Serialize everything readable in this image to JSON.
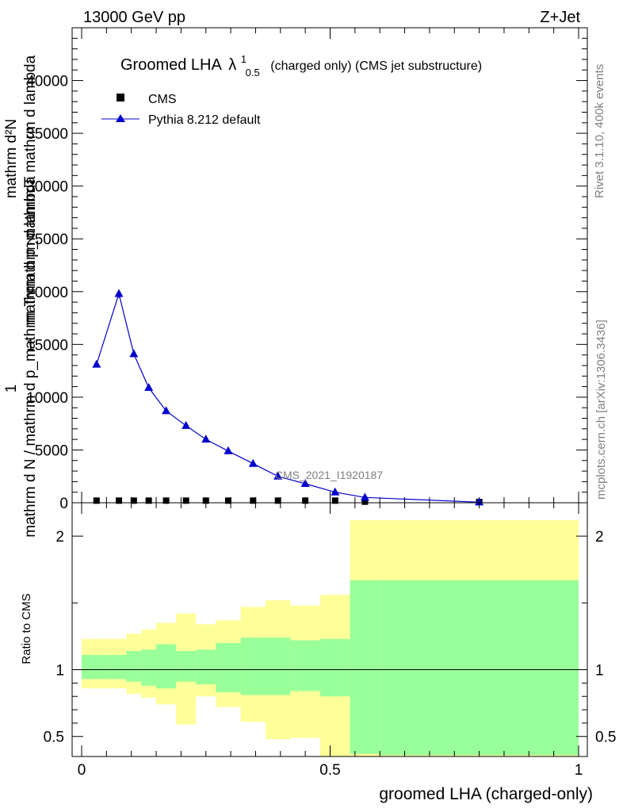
{
  "header": {
    "left": "13000 GeV pp",
    "right": "Z+Jet"
  },
  "side": {
    "rivet": "Rivet 3.1.10,  400k events",
    "mcplots": "mcplots.cern.ch [arXiv:1306.3436]"
  },
  "watermark": "CMS_2021_I1920187",
  "chart_data": [
    {
      "type": "line",
      "title": {
        "main": "Groomed LHA",
        "symbol": "λ",
        "sup": "1",
        "sub": "0.5",
        "rest": "(charged only) (CMS jet substructure)"
      },
      "ylabel": {
        "top": "mathrm d²N",
        "top_alt": "mathrm d p_mathrm T mathrm d lambda",
        "bottom_one": "1",
        "bottom": "mathrm d N / mathrm d p_mathrm T mathrm d lambda"
      },
      "xlim": [
        0,
        1
      ],
      "ylim": [
        0,
        45000
      ],
      "yticks": [
        {
          "value": 0,
          "label": "0"
        },
        {
          "value": 5000,
          "label": "5000"
        },
        {
          "value": 10000,
          "label": "10000"
        },
        {
          "value": 15000,
          "label": "15000"
        },
        {
          "value": 20000,
          "label": "20000"
        },
        {
          "value": 25000,
          "label": "25000"
        },
        {
          "value": 30000,
          "label": "30000"
        },
        {
          "value": 35000,
          "label": "35000"
        },
        {
          "value": 40000,
          "label": "40000"
        }
      ],
      "legend": [
        "CMS",
        "Pythia 8.212 default"
      ],
      "series": [
        {
          "name": "CMS",
          "marker": "square",
          "color": "#000000",
          "x": [
            0.03,
            0.075,
            0.105,
            0.135,
            0.17,
            0.21,
            0.25,
            0.295,
            0.345,
            0.395,
            0.45,
            0.51,
            0.57,
            0.8
          ],
          "values": [
            200,
            200,
            200,
            200,
            200,
            200,
            200,
            200,
            200,
            200,
            200,
            200,
            100,
            50
          ]
        },
        {
          "name": "Pythia 8.212 default",
          "marker": "triangle",
          "color": "#0000cc",
          "x": [
            0.03,
            0.075,
            0.105,
            0.135,
            0.17,
            0.21,
            0.25,
            0.295,
            0.345,
            0.395,
            0.45,
            0.51,
            0.57,
            0.8
          ],
          "values": [
            13100,
            19800,
            14100,
            10900,
            8700,
            7300,
            6000,
            4900,
            3700,
            2500,
            1800,
            1000,
            500,
            50
          ]
        }
      ]
    },
    {
      "type": "area",
      "ylabel": "Ratio to CMS",
      "xlabel": "groomed LHA (charged-only)",
      "xlim": [
        0,
        1
      ],
      "ylim": [
        0.35,
        2.25
      ],
      "xticks": [
        {
          "value": 0,
          "label": "0"
        },
        {
          "value": 0.5,
          "label": "0.5"
        },
        {
          "value": 1,
          "label": "1"
        }
      ],
      "yticks": [
        {
          "value": 0.5,
          "label": "0.5"
        },
        {
          "value": 1,
          "label": "1"
        },
        {
          "value": 2,
          "label": "2"
        }
      ],
      "reference_line": 1,
      "bins": [
        0,
        0.06,
        0.09,
        0.12,
        0.15,
        0.19,
        0.23,
        0.27,
        0.32,
        0.37,
        0.42,
        0.48,
        0.54,
        0.6,
        1.0
      ],
      "band_inner": {
        "color": "#99ff99",
        "lo": [
          0.93,
          0.93,
          0.91,
          0.88,
          0.86,
          0.91,
          0.89,
          0.83,
          0.81,
          0.81,
          0.84,
          0.8,
          0.37,
          0.36
        ],
        "hi": [
          1.11,
          1.11,
          1.14,
          1.15,
          1.19,
          1.14,
          1.15,
          1.2,
          1.24,
          1.24,
          1.22,
          1.23,
          1.67,
          1.67
        ]
      },
      "band_outer": {
        "color": "#ffff99",
        "lo": [
          0.86,
          0.86,
          0.82,
          0.79,
          0.74,
          0.59,
          0.8,
          0.72,
          0.61,
          0.48,
          0.49,
          0.3,
          0.3,
          0.3
        ],
        "hi": [
          1.23,
          1.23,
          1.27,
          1.3,
          1.35,
          1.42,
          1.34,
          1.37,
          1.47,
          1.52,
          1.48,
          1.56,
          2.12,
          2.12
        ]
      }
    }
  ]
}
